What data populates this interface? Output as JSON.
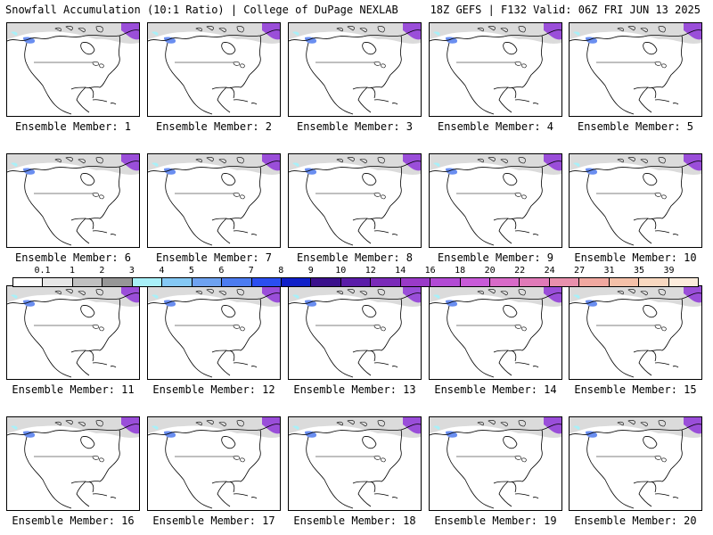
{
  "header": {
    "title_left": "Snowfall Accumulation (10:1 Ratio) | College of DuPage NEXLAB",
    "title_right": "18Z GEFS | F132 Valid: 06Z FRI JUN 13 2025"
  },
  "panels": [
    {
      "label": "Ensemble Member: 1"
    },
    {
      "label": "Ensemble Member: 2"
    },
    {
      "label": "Ensemble Member: 3"
    },
    {
      "label": "Ensemble Member: 4"
    },
    {
      "label": "Ensemble Member: 5"
    },
    {
      "label": "Ensemble Member: 6"
    },
    {
      "label": "Ensemble Member: 7"
    },
    {
      "label": "Ensemble Member: 8"
    },
    {
      "label": "Ensemble Member: 9"
    },
    {
      "label": "Ensemble Member: 10"
    },
    {
      "label": "Ensemble Member: 11"
    },
    {
      "label": "Ensemble Member: 12"
    },
    {
      "label": "Ensemble Member: 13"
    },
    {
      "label": "Ensemble Member: 14"
    },
    {
      "label": "Ensemble Member: 15"
    },
    {
      "label": "Ensemble Member: 16"
    },
    {
      "label": "Ensemble Member: 17"
    },
    {
      "label": "Ensemble Member: 18"
    },
    {
      "label": "Ensemble Member: 19"
    },
    {
      "label": "Ensemble Member: 20"
    }
  ],
  "legend": {
    "ticks": [
      "0.1",
      "1",
      "2",
      "3",
      "4",
      "5",
      "6",
      "7",
      "8",
      "9",
      "10",
      "12",
      "14",
      "16",
      "18",
      "20",
      "22",
      "24",
      "27",
      "31",
      "35",
      "39"
    ],
    "colors": [
      "#ffffff",
      "#e6e6e6",
      "#c0c0c0",
      "#969696",
      "#a8f0f8",
      "#84c8f4",
      "#6ea2f0",
      "#4c7cf0",
      "#2a4ef0",
      "#1020c8",
      "#3a108c",
      "#5a1ca8",
      "#7a2ab8",
      "#9a3ac8",
      "#b24ad4",
      "#c85ad8",
      "#d86ac8",
      "#e07ab8",
      "#e890ac",
      "#f0a8a0",
      "#f4c0a8",
      "#f8d8c0",
      "#fcecdc"
    ]
  },
  "palette": {
    "snow_gray": "#bdbdbd",
    "snow_blue": "#6a8ef0",
    "snow_purple": "#8a2ad8",
    "snow_cyan": "#a8f0f8"
  }
}
